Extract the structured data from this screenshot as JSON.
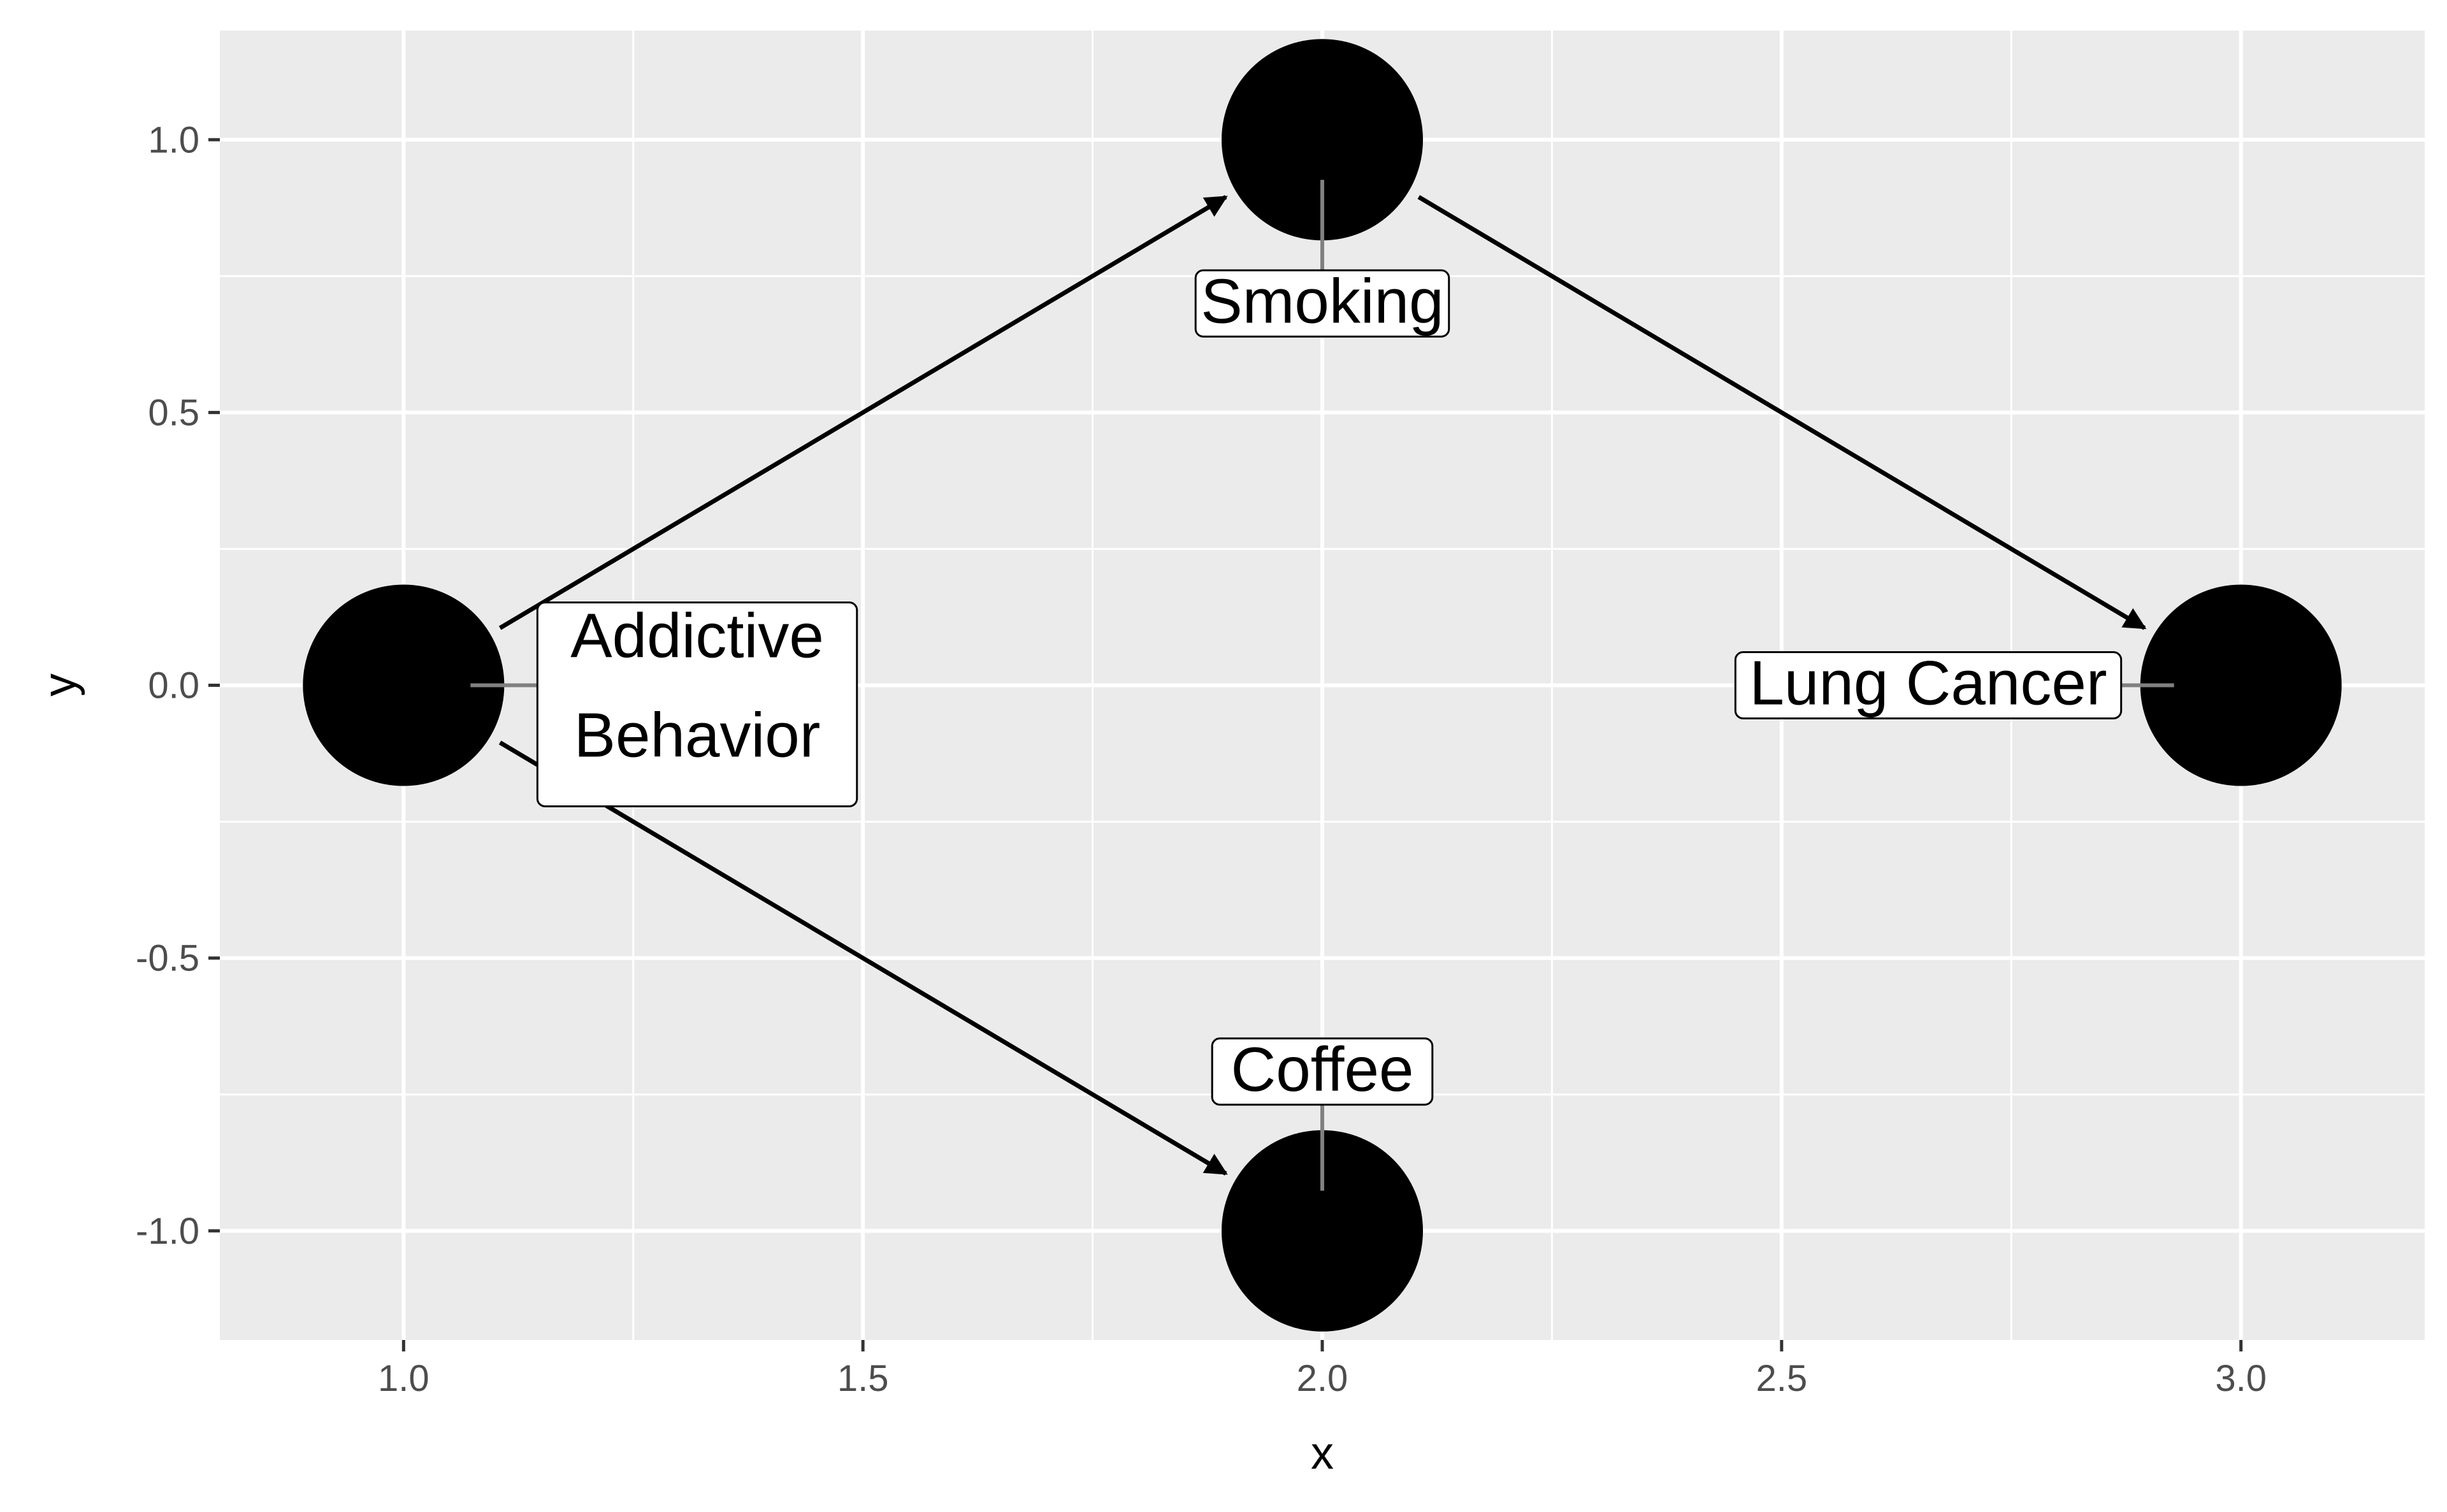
{
  "chart_data": {
    "type": "scatter",
    "title": "",
    "xlabel": "x",
    "ylabel": "y",
    "xlim": [
      0.8,
      3.2
    ],
    "ylim": [
      -1.2,
      1.2
    ],
    "grid": true,
    "x_ticks": [
      {
        "value": 1.0,
        "label": "1.0"
      },
      {
        "value": 1.5,
        "label": "1.5"
      },
      {
        "value": 2.0,
        "label": "2.0"
      },
      {
        "value": 2.5,
        "label": "2.5"
      },
      {
        "value": 3.0,
        "label": "3.0"
      }
    ],
    "y_ticks": [
      {
        "value": 1.0,
        "label": "1.0"
      },
      {
        "value": 0.5,
        "label": "0.5"
      },
      {
        "value": 0.0,
        "label": "0.0"
      },
      {
        "value": -0.5,
        "label": "-0.5"
      },
      {
        "value": -1.0,
        "label": "-1.0"
      }
    ],
    "nodes": [
      {
        "id": "addictive",
        "label_lines": [
          "Addictive",
          "Behavior"
        ],
        "x": 1.0,
        "y": 0.0,
        "label_side": "right"
      },
      {
        "id": "smoking",
        "label_lines": [
          "Smoking"
        ],
        "x": 2.0,
        "y": 1.0,
        "label_side": "below"
      },
      {
        "id": "coffee",
        "label_lines": [
          "Coffee"
        ],
        "x": 2.0,
        "y": -1.0,
        "label_side": "above"
      },
      {
        "id": "lung_cancer",
        "label_lines": [
          "Lung Cancer"
        ],
        "x": 3.0,
        "y": 0.0,
        "label_side": "left"
      }
    ],
    "edges": [
      {
        "from": "addictive",
        "to": "smoking"
      },
      {
        "from": "addictive",
        "to": "coffee"
      },
      {
        "from": "smoking",
        "to": "lung_cancer"
      }
    ],
    "colors": {
      "panel": "#ebebeb",
      "grid": "#ffffff",
      "node": "#000000",
      "edge": "#000000",
      "leader": "#808080",
      "label_box": "#ffffff"
    }
  }
}
